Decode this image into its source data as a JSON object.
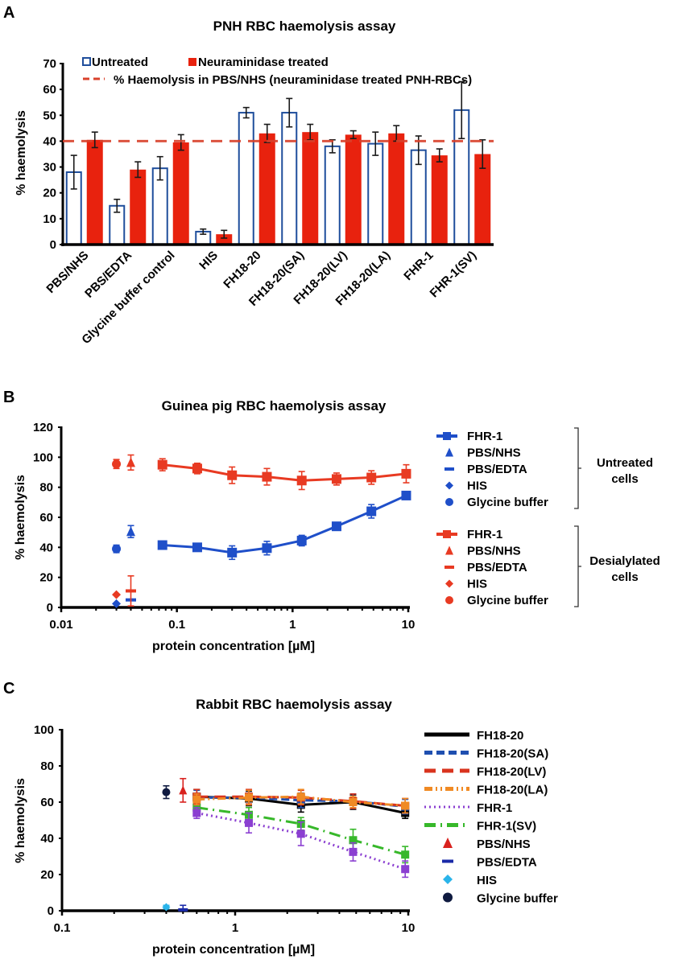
{
  "chart_data": [
    {
      "panel": "A",
      "type": "bar",
      "title": "PNH RBC haemolysis assay",
      "xlabel": "",
      "ylabel": "% haemolysis",
      "ylim": [
        0,
        70
      ],
      "yticks": [
        0,
        10,
        20,
        30,
        40,
        50,
        60,
        70
      ],
      "categories": [
        "PBS/NHS",
        "PBS/EDTA",
        "Glycine buffer control",
        "HIS",
        "FH18-20",
        "FH18-20(SA)",
        "FH18-20(LV)",
        "FH18-20(LA)",
        "FHR-1",
        "FHR-1(SV)"
      ],
      "series": [
        {
          "name": "Untreated",
          "style": "open",
          "color": "#1f4e9c",
          "values": [
            28,
            15,
            29.5,
            5,
            51,
            51,
            38,
            39,
            36.5,
            52
          ],
          "errors": [
            6.5,
            2.5,
            4.5,
            1,
            2,
            5.5,
            2.5,
            4.5,
            5.5,
            11
          ]
        },
        {
          "name": "Neuraminidase treated",
          "style": "filled",
          "color": "#e8220e",
          "values": [
            40.5,
            29,
            39.5,
            4,
            43,
            43.5,
            42.5,
            43,
            34.5,
            35
          ],
          "errors": [
            3,
            3,
            3,
            1.5,
            3.5,
            3,
            1.5,
            3,
            2.5,
            5.5
          ]
        }
      ],
      "reference_line": {
        "label": "% Haemolysis in PBS/NHS (neuraminidase treated PNH-RBCs)",
        "value": 40,
        "color": "#d9412b",
        "style": "dashed"
      },
      "legend_position": "top"
    },
    {
      "panel": "B",
      "type": "line",
      "title": "Guinea pig RBC haemolysis assay",
      "xlabel": "protein concentration [µM]",
      "ylabel": "% haemolysis",
      "xscale": "log",
      "xlim": [
        0.01,
        10
      ],
      "xticks": [
        "0.01",
        "0.1",
        "1",
        "10"
      ],
      "ylim": [
        0,
        120
      ],
      "yticks": [
        0,
        20,
        40,
        60,
        80,
        100,
        120
      ],
      "x": [
        0.075,
        0.15,
        0.3,
        0.6,
        1.2,
        2.4,
        4.8,
        9.6
      ],
      "series": [
        {
          "name": "FHR-1",
          "group": "Untreated cells",
          "color": "#1f4fc9",
          "marker": "square",
          "values": [
            41.5,
            40,
            36.5,
            39.5,
            44.5,
            54,
            64,
            74.5
          ],
          "errors": [
            2.5,
            2,
            4.5,
            4.5,
            3.5,
            2.5,
            4.5,
            2.5
          ]
        },
        {
          "name": "FHR-1",
          "group": "Desialylated cells",
          "color": "#e83a22",
          "marker": "square",
          "values": [
            95,
            92.5,
            88,
            87,
            84.5,
            85.5,
            86.5,
            89
          ],
          "errors": [
            4,
            3.5,
            5.5,
            5.5,
            6,
            4,
            4.5,
            6
          ]
        }
      ],
      "controls": [
        {
          "name": "PBS/NHS",
          "group": "Untreated cells",
          "color": "#1f4fc9",
          "marker": "triangle",
          "x": 0.04,
          "value": 50.5,
          "error": 4
        },
        {
          "name": "PBS/EDTA",
          "group": "Untreated cells",
          "color": "#1f4fc9",
          "marker": "dash",
          "x": 0.04,
          "value": 5,
          "error": 0
        },
        {
          "name": "HIS",
          "group": "Untreated cells",
          "color": "#1f4fc9",
          "marker": "diamond",
          "x": 0.03,
          "value": 2.5,
          "error": 0
        },
        {
          "name": "Glycine buffer",
          "group": "Untreated cells",
          "color": "#1f4fc9",
          "marker": "circle",
          "x": 0.03,
          "value": 39,
          "error": 2.5
        },
        {
          "name": "PBS/NHS",
          "group": "Desialylated cells",
          "color": "#e83a22",
          "marker": "triangle",
          "x": 0.04,
          "value": 96.5,
          "error": 5
        },
        {
          "name": "PBS/EDTA",
          "group": "Desialylated cells",
          "color": "#e83a22",
          "marker": "dash",
          "x": 0.04,
          "value": 11,
          "error": 10
        },
        {
          "name": "HIS",
          "group": "Desialylated cells",
          "color": "#e83a22",
          "marker": "diamond",
          "x": 0.03,
          "value": 8.5,
          "error": 0
        },
        {
          "name": "Glycine buffer",
          "group": "Desialylated cells",
          "color": "#e83a22",
          "marker": "circle",
          "x": 0.03,
          "value": 95.5,
          "error": 3
        }
      ],
      "legend": {
        "position": "right",
        "groups": [
          {
            "label_lines": [
              "Untreated",
              "cells"
            ],
            "color": "#1f4fc9",
            "items": [
              "FHR-1",
              "PBS/NHS",
              "PBS/EDTA",
              "HIS",
              "Glycine buffer"
            ],
            "markers": [
              "line-square",
              "triangle",
              "dash",
              "diamond",
              "circle"
            ]
          },
          {
            "label_lines": [
              "Desialylated",
              "cells"
            ],
            "color": "#e83a22",
            "items": [
              "FHR-1",
              "PBS/NHS",
              "PBS/EDTA",
              "HIS",
              "Glycine buffer"
            ],
            "markers": [
              "line-square",
              "triangle",
              "dash",
              "diamond",
              "circle"
            ]
          }
        ]
      }
    },
    {
      "panel": "C",
      "type": "line",
      "title": "Rabbit RBC haemolysis assay",
      "xlabel": "protein concentration [µM]",
      "ylabel": "% haemolysis",
      "xscale": "log",
      "xlim": [
        0.1,
        10
      ],
      "xticks": [
        "0.1",
        "1",
        "10"
      ],
      "ylim": [
        0,
        100
      ],
      "yticks": [
        0,
        20,
        40,
        60,
        80,
        100
      ],
      "x": [
        0.6,
        1.2,
        2.4,
        4.8,
        9.6
      ],
      "series": [
        {
          "name": "FH18-20",
          "color": "#000000",
          "dash": "solid",
          "values": [
            63,
            62,
            58.5,
            60,
            54
          ],
          "errors": [
            4,
            4,
            4,
            4,
            3
          ]
        },
        {
          "name": "FH18-20(SA)",
          "color": "#1f4fb0",
          "dash": "dash",
          "values": [
            62.5,
            62.5,
            61,
            60.5,
            57.5
          ],
          "errors": [
            4,
            4,
            4,
            4,
            4
          ]
        },
        {
          "name": "FH18-20(LV)",
          "color": "#d9341e",
          "dash": "longdash",
          "values": [
            63,
            63,
            62.5,
            60.5,
            58
          ],
          "errors": [
            4,
            4,
            4,
            4,
            4
          ]
        },
        {
          "name": "FH18-20(LA)",
          "color": "#f08a24",
          "dash": "dashdotdot",
          "values": [
            61.5,
            62.5,
            63,
            60,
            58
          ],
          "errors": [
            3,
            4,
            4,
            3,
            4
          ]
        },
        {
          "name": "FHR-1",
          "color": "#8b3fd1",
          "dash": "dot",
          "values": [
            54,
            48.5,
            42.5,
            32.5,
            23
          ],
          "errors": [
            3,
            5.5,
            6.5,
            5,
            4.5
          ]
        },
        {
          "name": "FHR-1(SV)",
          "color": "#37b82a",
          "dash": "dashdot",
          "values": [
            57,
            53,
            48,
            39,
            31
          ],
          "errors": [
            3,
            4,
            3.5,
            6,
            4.5
          ]
        }
      ],
      "controls": [
        {
          "name": "PBS/NHS",
          "color": "#d9221e",
          "marker": "triangle",
          "x": 0.5,
          "value": 66.5,
          "error": 6.5
        },
        {
          "name": "PBS/EDTA",
          "color": "#1a2aa8",
          "marker": "dash",
          "x": 0.5,
          "value": 0.5,
          "error": 2.5
        },
        {
          "name": "HIS",
          "color": "#2ab4ea",
          "marker": "diamond",
          "x": 0.4,
          "value": 2,
          "error": 1
        },
        {
          "name": "Glycine buffer",
          "color": "#0f1a40",
          "marker": "circle",
          "x": 0.4,
          "value": 65.5,
          "error": 3.5
        }
      ],
      "legend": {
        "position": "right",
        "items": [
          "FH18-20",
          "FH18-20(SA)",
          "FH18-20(LV)",
          "FH18-20(LA)",
          "FHR-1",
          "FHR-1(SV)",
          "PBS/NHS",
          "PBS/EDTA",
          "HIS",
          "Glycine buffer"
        ]
      }
    }
  ]
}
